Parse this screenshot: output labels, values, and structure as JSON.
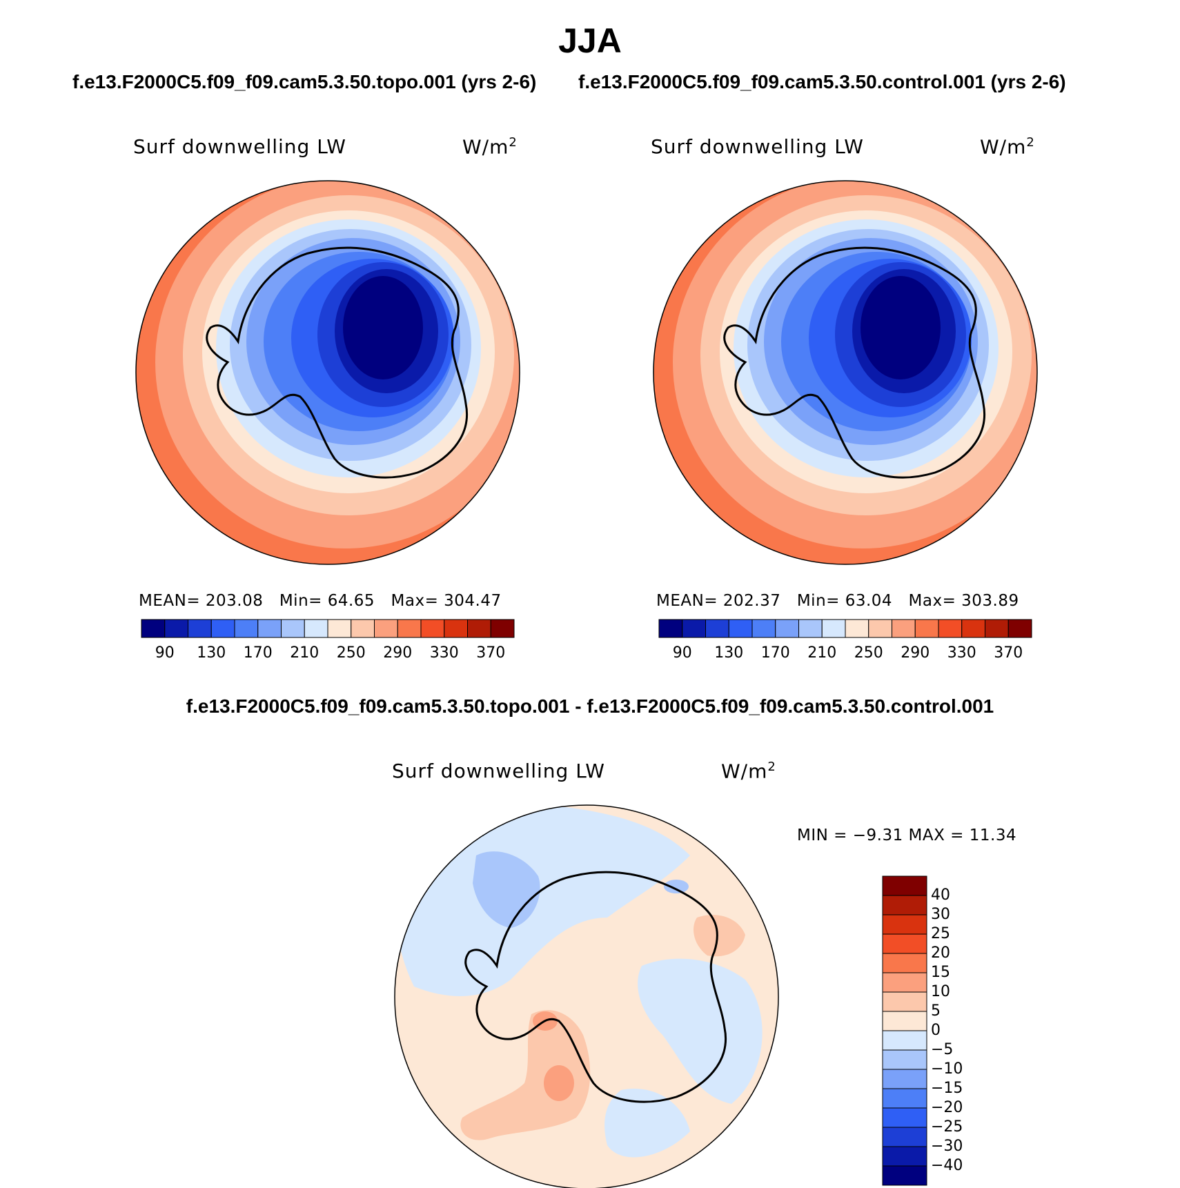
{
  "title": "JJA",
  "left_case_title": "f.e13.F2000C5.f09_f09.cam5.3.50.topo.001 (yrs 2-6)",
  "right_case_title": "f.e13.F2000C5.f09_f09.cam5.3.50.control.001 (yrs 2-6)",
  "diff_title": "f.e13.F2000C5.f09_f09.cam5.3.50.topo.001 - f.e13.F2000C5.f09_f09.cam5.3.50.control.001",
  "panels": [
    {
      "label": "Surf downwelling LW",
      "units": "W/m",
      "units_sup": "2",
      "mean": "MEAN= 203.08",
      "min": "Min=  64.65",
      "max": "Max= 304.47"
    },
    {
      "label": "Surf downwelling LW",
      "units": "W/m",
      "units_sup": "2",
      "mean": "MEAN= 202.37",
      "min": "Min=  63.04",
      "max": "Max= 303.89"
    }
  ],
  "diff_panel": {
    "label": "Surf downwelling LW",
    "units": "W/m",
    "units_sup": "2",
    "min_max": "MIN =   −9.31 MAX =   11.34"
  },
  "abs_colorbar": {
    "labels": [
      "90",
      "130",
      "170",
      "210",
      "250",
      "290",
      "330",
      "370"
    ],
    "colors": [
      "#00007f",
      "#0a1aa9",
      "#1d3fd6",
      "#2f5ff5",
      "#4d7ff7",
      "#7aa1f9",
      "#a9c6fb",
      "#d6e8fd",
      "#fde8d6",
      "#fcc8ac",
      "#fba07e",
      "#f9774b",
      "#f24e26",
      "#d9330f",
      "#b01c06",
      "#7f0000"
    ]
  },
  "diff_colorbar": {
    "labels": [
      "40",
      "30",
      "25",
      "20",
      "15",
      "10",
      "5",
      "0",
      "−5",
      "−10",
      "−15",
      "−20",
      "−25",
      "−30",
      "−40"
    ],
    "colors": [
      "#7f0000",
      "#b01c06",
      "#d9330f",
      "#f24e26",
      "#f9774b",
      "#fba07e",
      "#fcc8ac",
      "#fde8d6",
      "#d6e8fd",
      "#a9c6fb",
      "#7aa1f9",
      "#4d7ff7",
      "#2f5ff5",
      "#1d3fd6",
      "#0a1aa9",
      "#00007f"
    ]
  }
}
